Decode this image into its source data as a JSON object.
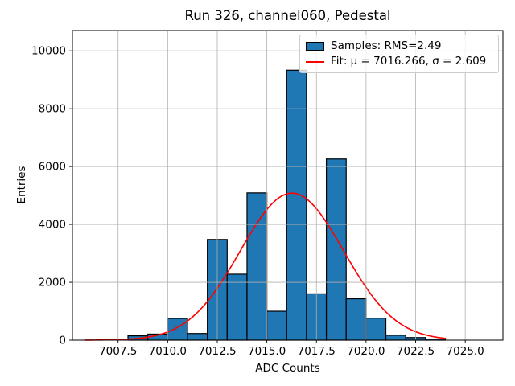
{
  "chart_data": {
    "type": "bar",
    "subtype": "histogram-with-gaussian-fit",
    "title": "Run 326, channel060, Pedestal",
    "xlabel": "ADC Counts",
    "ylabel": "Entries",
    "bin_edges": [
      7008,
      7009,
      7010,
      7011,
      7012,
      7013,
      7014,
      7015,
      7016,
      7017,
      7018,
      7019,
      7020,
      7021,
      7022,
      7023,
      7024
    ],
    "counts": [
      150,
      210,
      750,
      230,
      3480,
      2280,
      5090,
      1000,
      9330,
      1600,
      6260,
      1430,
      760,
      170,
      90,
      40
    ],
    "series_name": "Samples",
    "xlim": [
      7005.2,
      7026.9
    ],
    "ylim": [
      0,
      10700
    ],
    "xticks": [
      7007.5,
      7010.0,
      7012.5,
      7015.0,
      7017.5,
      7020.0,
      7022.5,
      7025.0
    ],
    "xtick_labels": [
      "7007.5",
      "7010.0",
      "7012.5",
      "7015.0",
      "7017.5",
      "7020.0",
      "7022.5",
      "7025.0"
    ],
    "yticks": [
      0,
      2000,
      4000,
      6000,
      8000,
      10000
    ],
    "ytick_labels": [
      "0",
      "2000",
      "4000",
      "6000",
      "8000",
      "10000"
    ],
    "grid": true,
    "grid_color": "#b0b0b0",
    "bar_color": "#1f77b4",
    "bar_edge_color": "#000000",
    "fit": {
      "type": "gaussian",
      "mu": 7016.266,
      "sigma": 2.609,
      "amplitude": 5080,
      "x_start": 7005.85,
      "x_end": 7024.0,
      "color": "#ff0000"
    },
    "stats": {
      "rms": "2.49",
      "fit_mu": "7016.266",
      "fit_sigma": "2.609"
    },
    "legend": {
      "position": "upper right",
      "entries": [
        {
          "label": "Samples: RMS=2.49",
          "swatch": "bar"
        },
        {
          "label": "Fit: μ = 7016.266, σ = 2.609",
          "swatch": "line"
        }
      ]
    }
  }
}
